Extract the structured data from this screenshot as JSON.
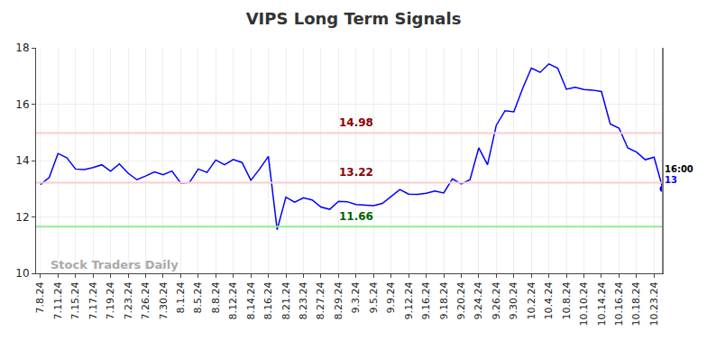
{
  "chart_data": {
    "type": "line",
    "title": "VIPS Long Term Signals",
    "categories": [
      "7.8.24",
      null,
      "7.11.24",
      null,
      "7.15.24",
      null,
      "7.17.24",
      null,
      "7.19.24",
      null,
      "7.23.24",
      null,
      "7.26.24",
      null,
      "7.30.24",
      null,
      "8.1.24",
      null,
      "8.5.24",
      null,
      "8.8.24",
      null,
      "8.12.24",
      null,
      "8.14.24",
      null,
      "8.16.24",
      null,
      "8.21.24",
      null,
      "8.23.24",
      null,
      "8.27.24",
      null,
      "8.29.24",
      null,
      "9.3.24",
      null,
      "9.5.24",
      null,
      "9.9.24",
      null,
      "9.12.24",
      null,
      "9.16.24",
      null,
      "9.18.24",
      null,
      "9.20.24",
      null,
      "9.24.24",
      null,
      "9.26.24",
      null,
      "9.30.24",
      null,
      "10.2.24",
      null,
      "10.4.24",
      null,
      "10.8.24",
      null,
      "10.10.24",
      null,
      "10.14.24",
      null,
      "10.16.24",
      null,
      "10.18.24",
      null,
      "10.23.24",
      null
    ],
    "values": [
      13.15,
      13.4,
      14.25,
      14.1,
      13.7,
      13.68,
      13.75,
      13.85,
      13.62,
      13.88,
      13.55,
      13.32,
      13.45,
      13.6,
      13.5,
      13.63,
      13.2,
      13.22,
      13.7,
      13.58,
      14.02,
      13.85,
      14.04,
      13.93,
      13.3,
      13.7,
      14.15,
      11.55,
      12.7,
      12.52,
      12.68,
      12.6,
      12.35,
      12.27,
      12.55,
      12.54,
      12.44,
      12.42,
      12.4,
      12.48,
      12.74,
      12.97,
      12.81,
      12.8,
      12.84,
      12.92,
      12.85,
      13.35,
      13.17,
      13.32,
      14.45,
      13.85,
      15.25,
      15.77,
      15.73,
      16.55,
      17.28,
      17.13,
      17.43,
      17.28,
      16.53,
      16.6,
      16.52,
      16.5,
      16.45,
      15.3,
      15.15,
      14.45,
      14.3,
      14.03,
      14.12,
      13.0
    ],
    "color": "#0000ff",
    "ylim": [
      10,
      18
    ],
    "yticks": [
      10,
      12,
      14,
      16,
      18
    ],
    "grid": true,
    "levels": [
      {
        "value": 14.98,
        "label": "14.98",
        "color": "#ffcccc",
        "label_color": "#8b0000"
      },
      {
        "value": 13.22,
        "label": "13.22",
        "color": "#ffcccc",
        "label_color": "#8b0000"
      },
      {
        "value": 11.66,
        "label": "11.66",
        "color": "#90ee90",
        "label_color": "#006400"
      }
    ],
    "last_point": {
      "time_label": "16:00",
      "value_label": "13"
    },
    "watermark": "Stock Traders Daily"
  }
}
